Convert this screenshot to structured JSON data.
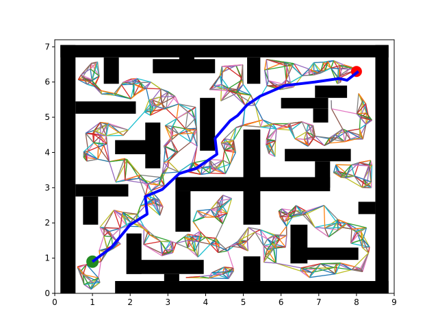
{
  "chart_data": {
    "type": "scatter",
    "title": "",
    "xlabel": "",
    "ylabel": "",
    "xlim": [
      0,
      9
    ],
    "ylim": [
      0,
      7.2
    ],
    "xticks": [
      0,
      1,
      2,
      3,
      4,
      5,
      6,
      7,
      8,
      9
    ],
    "yticks": [
      0,
      1,
      2,
      3,
      4,
      5,
      6,
      7
    ],
    "grid": false,
    "start": {
      "x": 1.0,
      "y": 0.9,
      "color": "#228b22"
    },
    "goal": {
      "x": 8.0,
      "y": 6.3,
      "color": "#ff0000"
    },
    "path": {
      "color": "#0000ff",
      "points": [
        [
          1.0,
          0.9
        ],
        [
          1.5,
          1.3
        ],
        [
          2.0,
          1.95
        ],
        [
          2.45,
          2.25
        ],
        [
          2.4,
          2.75
        ],
        [
          2.85,
          2.95
        ],
        [
          3.3,
          3.4
        ],
        [
          3.75,
          3.55
        ],
        [
          4.3,
          3.95
        ],
        [
          4.25,
          4.4
        ],
        [
          4.65,
          4.9
        ],
        [
          4.85,
          5.05
        ],
        [
          5.1,
          5.35
        ],
        [
          5.45,
          5.6
        ],
        [
          6.1,
          5.9
        ],
        [
          6.9,
          6.0
        ],
        [
          7.55,
          6.1
        ],
        [
          7.75,
          6.05
        ],
        [
          8.05,
          6.3
        ]
      ]
    },
    "walls": [
      [
        0.15,
        6.7,
        8.85,
        7.05
      ],
      [
        0.15,
        0.0,
        0.55,
        7.05
      ],
      [
        8.5,
        0.0,
        8.85,
        7.05
      ],
      [
        1.6,
        0.0,
        8.85,
        0.35
      ],
      [
        1.3,
        5.95,
        1.7,
        6.7
      ],
      [
        2.6,
        6.25,
        4.25,
        6.65
      ],
      [
        3.3,
        6.55,
        3.7,
        6.75
      ],
      [
        5.1,
        5.95,
        5.45,
        6.7
      ],
      [
        0.55,
        5.1,
        2.15,
        5.45
      ],
      [
        6.0,
        5.25,
        7.25,
        5.55
      ],
      [
        6.9,
        5.55,
        7.75,
        5.9
      ],
      [
        6.85,
        4.85,
        7.25,
        5.25
      ],
      [
        3.85,
        4.05,
        4.25,
        5.55
      ],
      [
        2.4,
        3.55,
        2.8,
        4.85
      ],
      [
        1.6,
        3.95,
        2.8,
        4.35
      ],
      [
        5.0,
        1.95,
        5.45,
        4.65
      ],
      [
        6.1,
        3.75,
        7.85,
        4.1
      ],
      [
        6.9,
        3.0,
        7.3,
        3.75
      ],
      [
        3.2,
        2.9,
        7.3,
        3.3
      ],
      [
        0.55,
        2.75,
        1.95,
        3.1
      ],
      [
        0.75,
        1.95,
        1.15,
        2.75
      ],
      [
        3.2,
        1.75,
        3.6,
        2.9
      ],
      [
        8.05,
        2.25,
        8.5,
        2.6
      ],
      [
        6.25,
        0.85,
        6.7,
        1.95
      ],
      [
        6.25,
        0.95,
        8.05,
        1.3
      ],
      [
        1.9,
        0.55,
        2.3,
        1.7
      ],
      [
        1.9,
        0.55,
        3.95,
        0.95
      ],
      [
        2.9,
        0.35,
        3.3,
        0.55
      ],
      [
        5.0,
        0.35,
        5.45,
        1.05
      ]
    ],
    "roadmap": {
      "node_count": 520,
      "neighbors": 6,
      "clusters": [
        [
          0.8,
          6.2,
          0.8,
          1.0,
          14
        ],
        [
          2.2,
          5.6,
          2.0,
          1.1,
          30
        ],
        [
          3.5,
          4.7,
          1.5,
          1.4,
          24
        ],
        [
          4.7,
          5.9,
          1.3,
          1.2,
          22
        ],
        [
          6.8,
          6.2,
          2.6,
          0.9,
          40
        ],
        [
          7.9,
          5.0,
          1.2,
          1.4,
          22
        ],
        [
          1.4,
          4.3,
          1.3,
          1.2,
          24
        ],
        [
          6.0,
          4.4,
          2.8,
          1.1,
          36
        ],
        [
          3.4,
          3.5,
          1.8,
          0.6,
          14
        ],
        [
          4.5,
          3.8,
          1.2,
          1.2,
          14
        ],
        [
          7.8,
          3.4,
          1.4,
          0.9,
          18
        ],
        [
          2.2,
          2.8,
          1.5,
          1.2,
          22
        ],
        [
          4.3,
          2.0,
          1.6,
          1.8,
          32
        ],
        [
          6.8,
          2.1,
          2.0,
          1.0,
          26
        ],
        [
          1.8,
          1.6,
          1.3,
          1.0,
          18
        ],
        [
          3.0,
          1.35,
          1.8,
          0.9,
          20
        ],
        [
          5.6,
          1.35,
          1.6,
          1.1,
          22
        ],
        [
          7.3,
          0.7,
          2.0,
          0.5,
          16
        ],
        [
          8.2,
          1.4,
          0.7,
          1.0,
          10
        ],
        [
          0.8,
          0.5,
          0.9,
          0.9,
          12
        ],
        [
          4.0,
          0.6,
          1.6,
          0.4,
          10
        ]
      ],
      "colors": [
        "#1f77b4",
        "#ff7f0e",
        "#2ca02c",
        "#d62728",
        "#9467bd",
        "#8c564b",
        "#e377c2",
        "#7f7f7f",
        "#bcbd22",
        "#17becf"
      ]
    }
  }
}
